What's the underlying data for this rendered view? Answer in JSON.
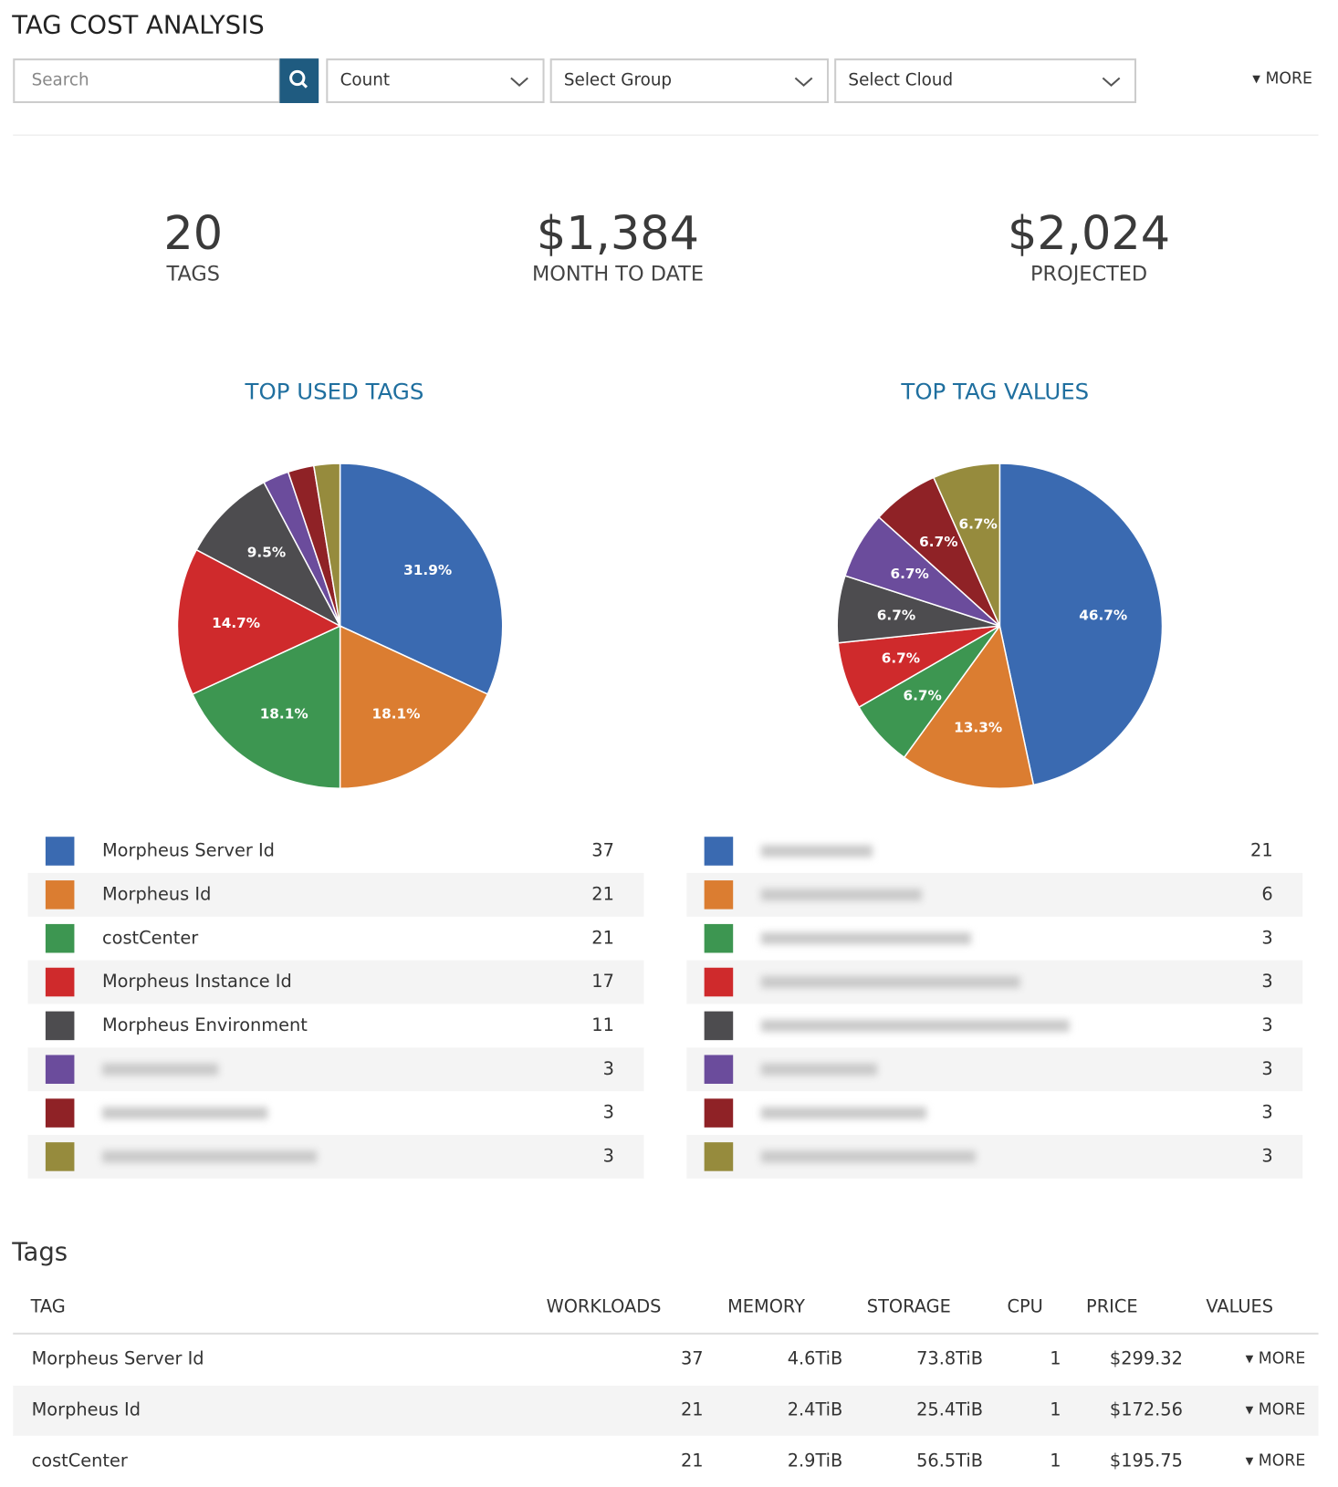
{
  "header": {
    "title": "TAG COST ANALYSIS",
    "more": "MORE"
  },
  "filters": {
    "search_placeholder": "Search",
    "measure": "Count",
    "group": "Select Group",
    "cloud": "Select Cloud"
  },
  "stats": [
    {
      "value": "20",
      "label": "TAGS"
    },
    {
      "value": "$1,384",
      "label": "MONTH TO DATE"
    },
    {
      "value": "$2,024",
      "label": "PROJECTED"
    }
  ],
  "chart_data": [
    {
      "type": "pie",
      "title": "TOP USED TAGS",
      "categories": [
        "Morpheus Server Id",
        "Morpheus Id",
        "costCenter",
        "Morpheus Instance Id",
        "Morpheus Environment",
        null,
        null,
        null
      ],
      "values": [
        37,
        21,
        21,
        17,
        11,
        3,
        3,
        3
      ],
      "value_labels": [
        "31.9%",
        "18.1%",
        "18.1%",
        "14.7%",
        "9.5%",
        null,
        null,
        null
      ],
      "colors": [
        "#3a6ab1",
        "#db7d31",
        "#3d9651",
        "#cf2a2c",
        "#4d4c4f",
        "#6b4c9c",
        "#8f2226",
        "#968b3d"
      ]
    },
    {
      "type": "pie",
      "title": "TOP TAG VALUES",
      "categories": [
        null,
        null,
        null,
        null,
        null,
        null,
        null,
        null
      ],
      "values": [
        21,
        6,
        3,
        3,
        3,
        3,
        3,
        3
      ],
      "value_labels": [
        "46.7%",
        "13.3%",
        "6.7%",
        "6.7%",
        "6.7%",
        "6.7%",
        "6.7%",
        "6.7%"
      ],
      "colors": [
        "#3a6ab1",
        "#db7d31",
        "#3d9651",
        "#cf2a2c",
        "#4d4c4f",
        "#6b4c9c",
        "#8f2226",
        "#968b3d"
      ]
    }
  ],
  "table": {
    "title": "Tags",
    "columns": [
      "TAG",
      "WORKLOADS",
      "MEMORY",
      "STORAGE",
      "CPU",
      "PRICE",
      "VALUES"
    ],
    "rows": [
      [
        "Morpheus Server Id",
        "37",
        "4.6TiB",
        "73.8TiB",
        "1",
        "$299.32",
        "MORE"
      ],
      [
        "Morpheus Id",
        "21",
        "2.4TiB",
        "25.4TiB",
        "1",
        "$172.56",
        "MORE"
      ],
      [
        "costCenter",
        "21",
        "2.9TiB",
        "56.5TiB",
        "1",
        "$195.75",
        "MORE"
      ]
    ]
  }
}
